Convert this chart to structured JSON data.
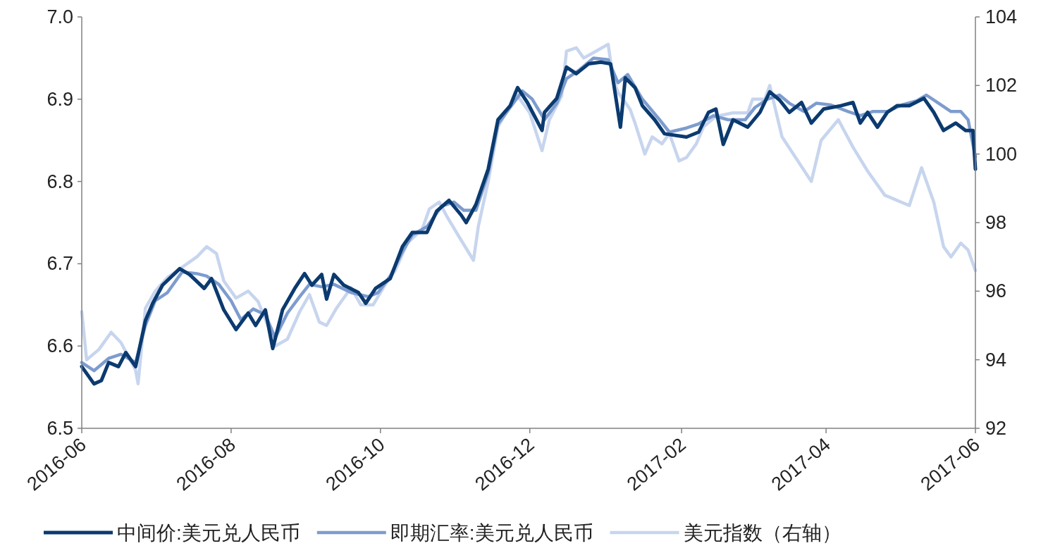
{
  "chart_data": {
    "type": "line",
    "legend": "bottom",
    "xlim": [
      "2016-06-01",
      "2017-06-01"
    ],
    "xticks": [
      "2016-06",
      "2016-08",
      "2016-10",
      "2016-12",
      "2017-02",
      "2017-04",
      "2017-06"
    ],
    "ylim": [
      6.5,
      7.0
    ],
    "yticks": [
      6.5,
      6.6,
      6.7,
      6.8,
      6.9,
      {
        "value": 7.0,
        "label": "7.0"
      }
    ],
    "y2lim": [
      92,
      104
    ],
    "y2ticks": [
      92,
      94,
      96,
      98,
      100,
      102,
      104
    ],
    "series": [
      {
        "name": "中间价:美元兑人民币",
        "color": "#0b3a6f",
        "x": [
          "2016-06-01",
          "2016-06-06",
          "2016-06-09",
          "2016-06-12",
          "2016-06-16",
          "2016-06-19",
          "2016-06-23",
          "2016-06-27",
          "2016-06-30",
          "2016-07-04",
          "2016-07-11",
          "2016-07-15",
          "2016-07-21",
          "2016-07-24",
          "2016-07-29",
          "2016-08-03",
          "2016-08-08",
          "2016-08-11",
          "2016-08-15",
          "2016-08-18",
          "2016-08-22",
          "2016-08-27",
          "2016-08-31",
          "2016-09-03",
          "2016-09-07",
          "2016-09-09",
          "2016-09-12",
          "2016-09-16",
          "2016-09-22",
          "2016-09-25",
          "2016-09-29",
          "2016-10-05",
          "2016-10-10",
          "2016-10-14",
          "2016-10-20",
          "2016-10-24",
          "2016-10-29",
          "2016-11-03",
          "2016-11-05",
          "2016-11-09",
          "2016-11-14",
          "2016-11-18",
          "2016-11-23",
          "2016-11-26",
          "2016-11-30",
          "2016-12-06",
          "2016-12-07",
          "2016-12-12",
          "2016-12-16",
          "2016-12-20",
          "2016-12-25",
          "2016-12-30",
          "2017-01-03",
          "2017-01-07",
          "2017-01-09",
          "2017-01-13",
          "2017-01-16",
          "2017-01-21",
          "2017-01-25",
          "2017-02-03",
          "2017-02-08",
          "2017-02-12",
          "2017-02-15",
          "2017-02-18",
          "2017-02-22",
          "2017-02-28",
          "2017-03-05",
          "2017-03-09",
          "2017-03-13",
          "2017-03-17",
          "2017-03-22",
          "2017-03-26",
          "2017-03-31",
          "2017-04-07",
          "2017-04-12",
          "2017-04-15",
          "2017-04-18",
          "2017-04-22",
          "2017-04-26",
          "2017-04-30",
          "2017-05-05",
          "2017-05-11",
          "2017-05-15",
          "2017-05-19",
          "2017-05-24",
          "2017-05-28",
          "2017-05-31",
          "2017-06-01"
        ],
        "values": [
          6.575,
          6.554,
          6.558,
          6.58,
          6.575,
          6.592,
          6.575,
          6.631,
          6.652,
          6.674,
          6.694,
          6.687,
          6.67,
          6.682,
          6.644,
          6.62,
          6.64,
          6.625,
          6.644,
          6.597,
          6.644,
          6.67,
          6.688,
          6.674,
          6.687,
          6.657,
          6.687,
          6.674,
          6.665,
          6.652,
          6.67,
          6.682,
          6.721,
          6.738,
          6.738,
          6.764,
          6.777,
          6.759,
          6.75,
          6.772,
          6.815,
          6.875,
          6.892,
          6.914,
          6.896,
          6.862,
          6.884,
          6.901,
          6.939,
          6.931,
          6.943,
          6.945,
          6.943,
          6.866,
          6.926,
          6.914,
          6.892,
          6.875,
          6.858,
          6.854,
          6.86,
          6.884,
          6.888,
          6.845,
          6.875,
          6.866,
          6.884,
          6.909,
          6.899,
          6.884,
          6.896,
          6.871,
          6.888,
          6.892,
          6.896,
          6.871,
          6.884,
          6.866,
          6.884,
          6.892,
          6.892,
          6.901,
          6.884,
          6.862,
          6.871,
          6.862,
          6.862,
          6.815
        ]
      },
      {
        "name": "即期汇率:美元兑人民币",
        "color": "#7d9ccf",
        "x": [
          "2016-06-01",
          "2016-06-06",
          "2016-06-12",
          "2016-06-17",
          "2016-06-23",
          "2016-06-27",
          "2016-07-01",
          "2016-07-06",
          "2016-07-12",
          "2016-07-18",
          "2016-07-22",
          "2016-07-27",
          "2016-08-01",
          "2016-08-05",
          "2016-08-10",
          "2016-08-15",
          "2016-08-19",
          "2016-08-24",
          "2016-08-29",
          "2016-09-02",
          "2016-09-07",
          "2016-09-12",
          "2016-09-19",
          "2016-09-26",
          "2016-09-30",
          "2016-10-05",
          "2016-10-10",
          "2016-10-14",
          "2016-10-20",
          "2016-10-26",
          "2016-10-31",
          "2016-11-04",
          "2016-11-09",
          "2016-11-14",
          "2016-11-18",
          "2016-11-23",
          "2016-11-28",
          "2016-12-02",
          "2016-12-07",
          "2016-12-12",
          "2016-12-16",
          "2016-12-21",
          "2016-12-27",
          "2017-01-02",
          "2017-01-06",
          "2017-01-10",
          "2017-01-16",
          "2017-01-23",
          "2017-01-27",
          "2017-02-03",
          "2017-02-08",
          "2017-02-14",
          "2017-02-20",
          "2017-02-27",
          "2017-03-03",
          "2017-03-08",
          "2017-03-13",
          "2017-03-17",
          "2017-03-23",
          "2017-03-28",
          "2017-04-03",
          "2017-04-10",
          "2017-04-15",
          "2017-04-20",
          "2017-04-26",
          "2017-05-02",
          "2017-05-08",
          "2017-05-12",
          "2017-05-17",
          "2017-05-22",
          "2017-05-26",
          "2017-05-29",
          "2017-06-01"
        ],
        "values": [
          6.58,
          6.57,
          6.585,
          6.59,
          6.58,
          6.625,
          6.655,
          6.665,
          6.69,
          6.688,
          6.685,
          6.675,
          6.655,
          6.632,
          6.645,
          6.638,
          6.61,
          6.64,
          6.66,
          6.675,
          6.672,
          6.675,
          6.665,
          6.66,
          6.665,
          6.685,
          6.715,
          6.735,
          6.745,
          6.77,
          6.775,
          6.765,
          6.765,
          6.81,
          6.87,
          6.89,
          6.91,
          6.9,
          6.875,
          6.895,
          6.925,
          6.935,
          6.95,
          6.948,
          6.92,
          6.93,
          6.9,
          6.875,
          6.86,
          6.865,
          6.87,
          6.88,
          6.875,
          6.875,
          6.89,
          6.9,
          6.905,
          6.895,
          6.885,
          6.895,
          6.893,
          6.885,
          6.88,
          6.885,
          6.885,
          6.893,
          6.898,
          6.905,
          6.895,
          6.885,
          6.885,
          6.875,
          6.83
        ]
      },
      {
        "name": "美元指数（右轴）",
        "color": "#c7d5ee",
        "axis": "y2",
        "x": [
          "2016-06-01",
          "2016-06-03",
          "2016-06-08",
          "2016-06-13",
          "2016-06-17",
          "2016-06-23",
          "2016-06-24",
          "2016-06-27",
          "2016-07-01",
          "2016-07-06",
          "2016-07-12",
          "2016-07-18",
          "2016-07-22",
          "2016-07-26",
          "2016-07-29",
          "2016-08-03",
          "2016-08-08",
          "2016-08-12",
          "2016-08-16",
          "2016-08-19",
          "2016-08-24",
          "2016-08-29",
          "2016-09-02",
          "2016-09-06",
          "2016-09-09",
          "2016-09-13",
          "2016-09-19",
          "2016-09-23",
          "2016-09-28",
          "2016-10-03",
          "2016-10-07",
          "2016-10-12",
          "2016-10-18",
          "2016-10-21",
          "2016-10-25",
          "2016-10-28",
          "2016-11-02",
          "2016-11-08",
          "2016-11-10",
          "2016-11-14",
          "2016-11-18",
          "2016-11-23",
          "2016-11-25",
          "2016-12-01",
          "2016-12-06",
          "2016-12-09",
          "2016-12-14",
          "2016-12-16",
          "2016-12-20",
          "2016-12-23",
          "2016-12-28",
          "2017-01-02",
          "2017-01-04",
          "2017-01-06",
          "2017-01-11",
          "2017-01-13",
          "2017-01-17",
          "2017-01-20",
          "2017-01-24",
          "2017-01-27",
          "2017-01-31",
          "2017-02-03",
          "2017-02-07",
          "2017-02-10",
          "2017-02-15",
          "2017-02-22",
          "2017-02-28",
          "2017-03-02",
          "2017-03-07",
          "2017-03-09",
          "2017-03-14",
          "2017-03-26",
          "2017-03-30",
          "2017-04-06",
          "2017-04-12",
          "2017-04-18",
          "2017-04-25",
          "2017-05-05",
          "2017-05-10",
          "2017-05-15",
          "2017-05-19",
          "2017-05-22",
          "2017-05-26",
          "2017-05-29",
          "2017-06-01"
        ],
        "values": [
          95.4,
          94.0,
          94.3,
          94.8,
          94.5,
          93.7,
          93.3,
          95.5,
          96.0,
          96.4,
          96.7,
          97.0,
          97.3,
          97.1,
          96.3,
          95.8,
          96.0,
          95.7,
          95.0,
          94.4,
          94.6,
          95.4,
          95.9,
          95.1,
          95.0,
          95.5,
          96.1,
          95.6,
          95.6,
          96.2,
          96.6,
          97.4,
          97.8,
          98.4,
          98.6,
          98.2,
          97.6,
          96.9,
          97.9,
          99.2,
          100.8,
          101.4,
          101.8,
          101.2,
          100.1,
          101.0,
          101.7,
          103.0,
          103.1,
          102.8,
          103.0,
          103.2,
          102.2,
          101.8,
          101.3,
          100.9,
          100.0,
          100.5,
          100.3,
          100.6,
          99.8,
          99.9,
          100.3,
          100.8,
          101.1,
          101.2,
          101.2,
          101.6,
          101.6,
          102.0,
          100.5,
          99.2,
          100.4,
          101.0,
          100.2,
          99.5,
          98.8,
          98.5,
          99.6,
          98.6,
          97.3,
          97.0,
          97.4,
          97.2,
          96.6
        ]
      }
    ]
  }
}
